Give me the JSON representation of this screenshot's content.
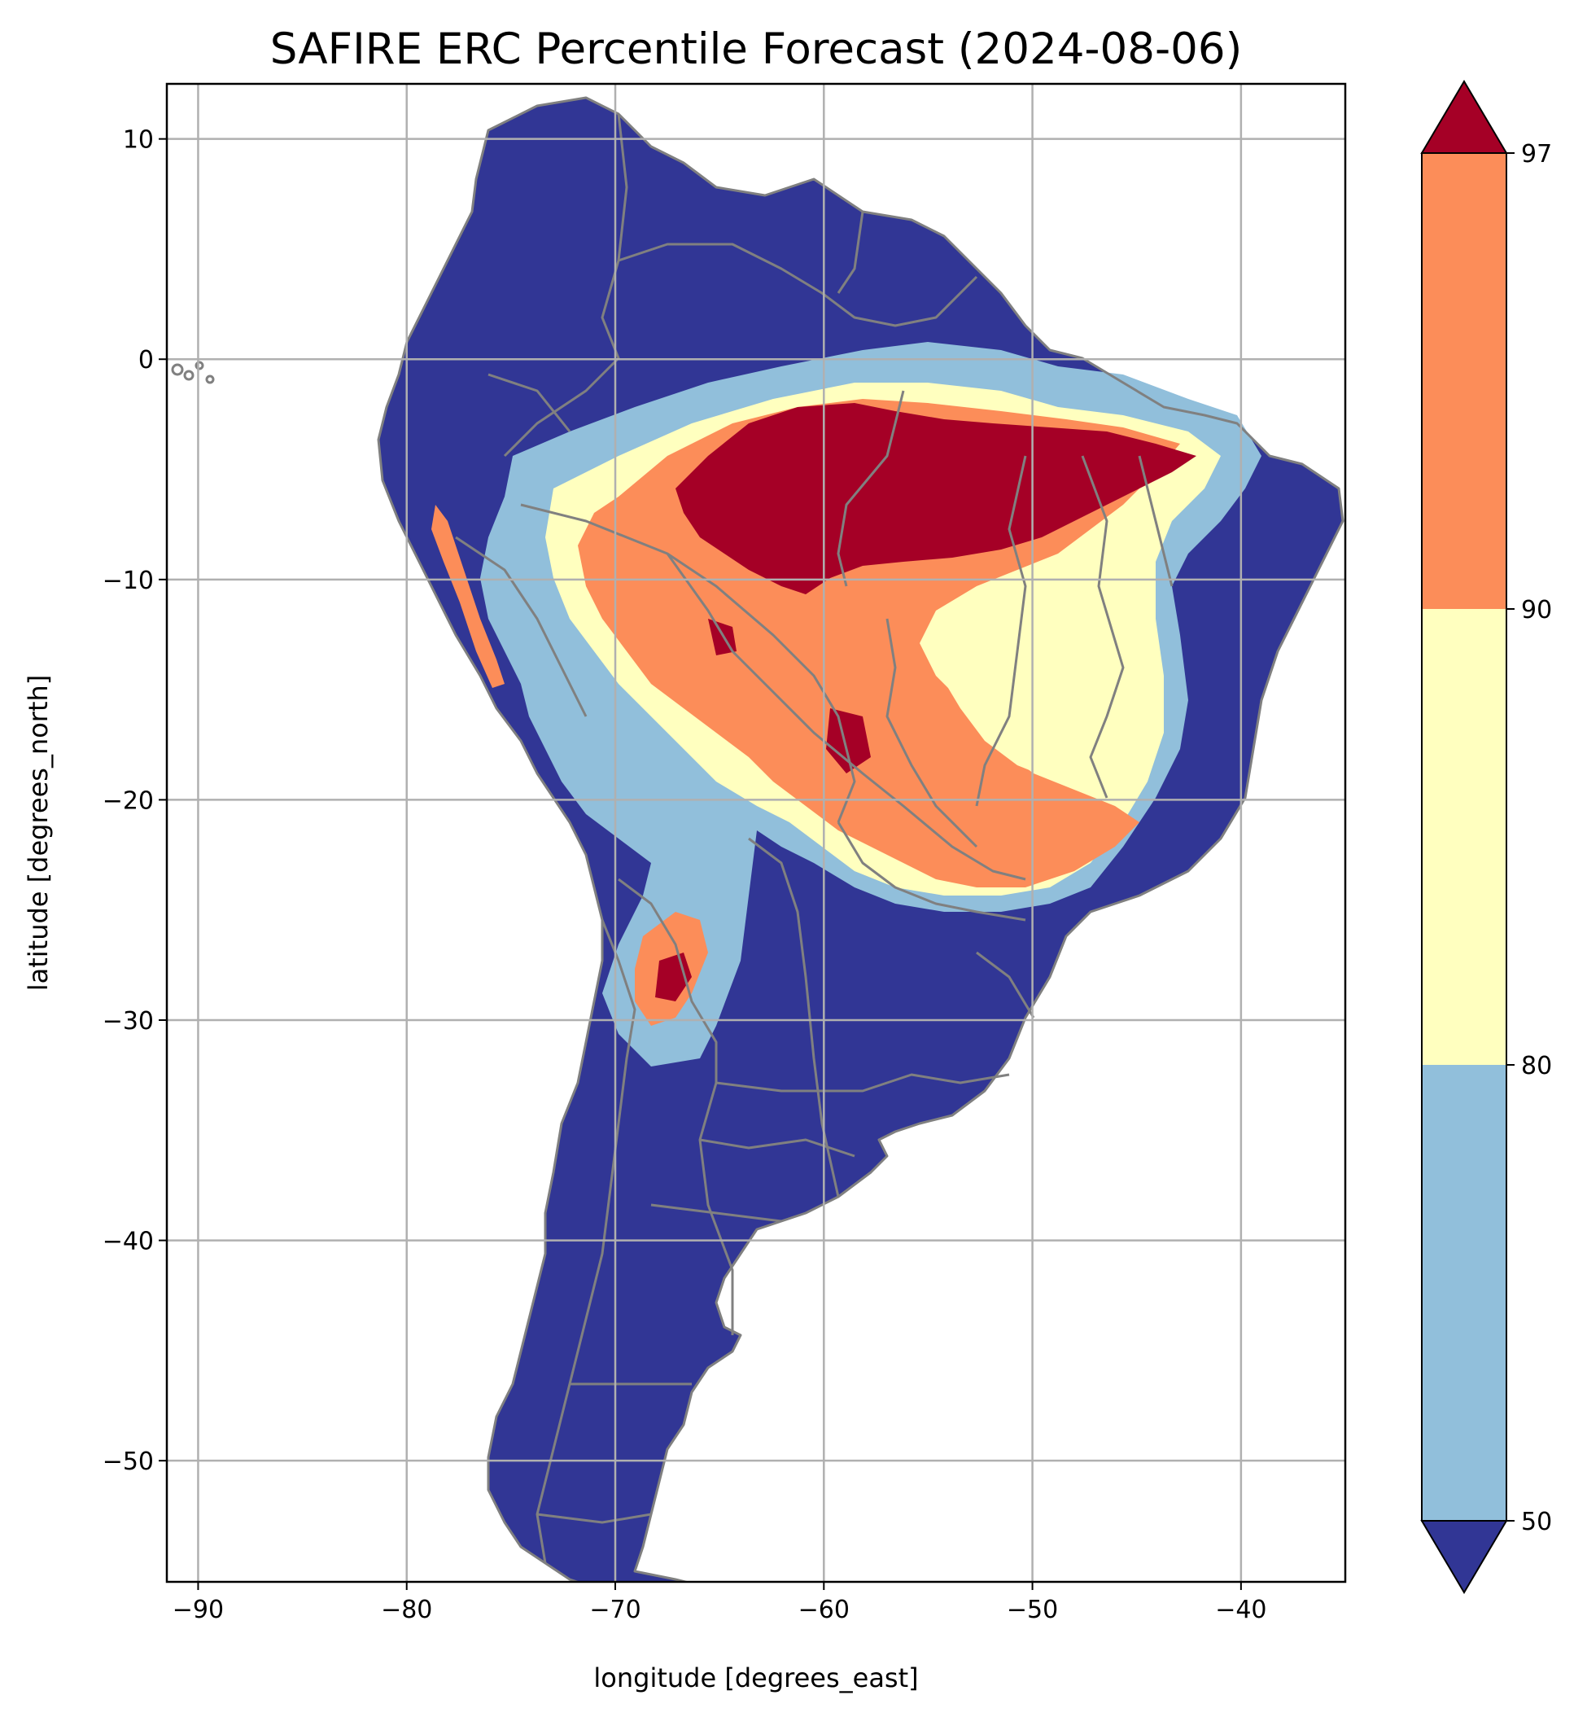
{
  "chart_data": {
    "type": "heatmap",
    "title": "SAFIRE ERC Percentile Forecast (2024-08-06)",
    "xlabel": "longitude [degrees_east]",
    "ylabel": "latitude [degrees_north]",
    "xlim": [
      -91.5,
      -35
    ],
    "ylim": [
      -55.5,
      12.5
    ],
    "xticks": [
      -90,
      -80,
      -70,
      -60,
      -50,
      -40
    ],
    "yticks": [
      10,
      0,
      -10,
      -20,
      -30,
      -40,
      -50
    ],
    "grid": true,
    "colorbar": {
      "ticks": [
        50,
        80,
        90,
        97
      ],
      "bins": [
        {
          "range": "<50",
          "color": "#313695"
        },
        {
          "range": "50-80",
          "color": "#91bfdb"
        },
        {
          "range": "80-90",
          "color": "#ffffbf"
        },
        {
          "range": "90-97",
          "color": "#fc8d59"
        },
        {
          "range": ">97",
          "color": "#a50026"
        }
      ]
    }
  }
}
